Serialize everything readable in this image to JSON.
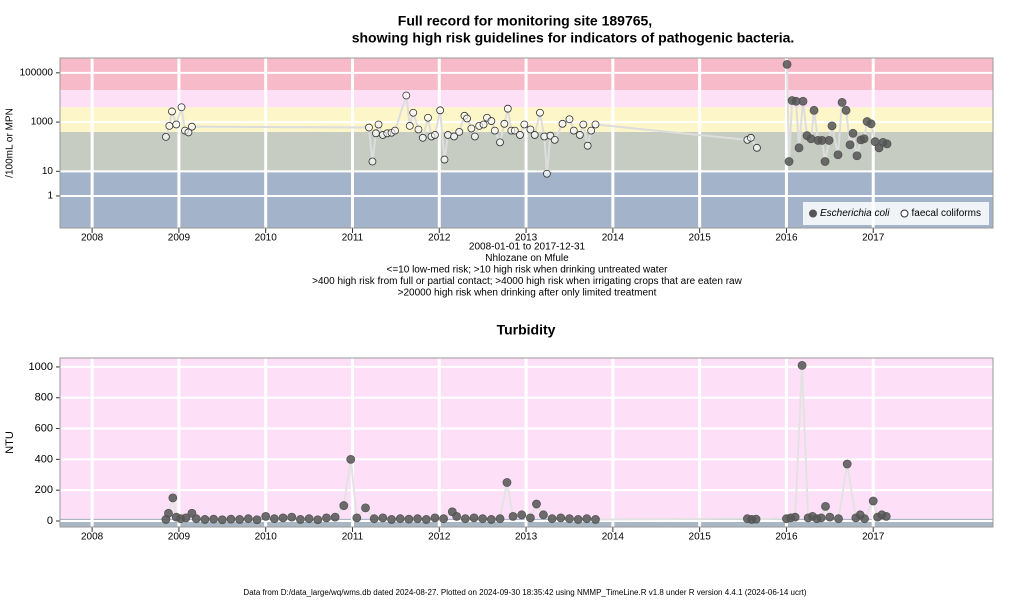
{
  "chart_data": [
    {
      "type": "scatter",
      "title": [
        "Full record for monitoring site 189765,",
        "showing high risk guidelines for indicators of pathogenic bacteria."
      ],
      "ylabel": "/100mL or MPN",
      "xlabel_lines": [
        "2008-01-01 to 2017-12-31",
        "Nhlozane on Mfule",
        "<=10 low-med risk; >10 high risk when drinking untreated water",
        ">400 high risk from full or partial contact; >4000 high risk when irrigating crops that are eaten raw",
        ">20000 high risk when drinking after only limited treatment"
      ],
      "log_y": true,
      "grid": true,
      "legend": "bottom-right",
      "xlim": [
        2007.63,
        2018.38
      ],
      "xticks": [
        2008,
        2009,
        2010,
        2011,
        2012,
        2013,
        2014,
        2015,
        2016,
        2017
      ],
      "ylim": [
        0.05,
        400000
      ],
      "yticks": [
        1,
        10,
        1000,
        100000
      ],
      "thresholds": [
        10,
        400,
        4000,
        20000
      ],
      "band_colors": [
        "#a3b4ca",
        "#c6ccc1",
        "#fdf6c8",
        "#fde0f6",
        "#f7bac8"
      ],
      "line_color": "#dddddd",
      "series": [
        {
          "name": "Escherichia coli",
          "italic": true,
          "color": "#555555",
          "filled": true,
          "x": [
            2016.007,
            2016.03,
            2016.065,
            2016.111,
            2016.145,
            2016.191,
            2016.237,
            2016.283,
            2016.318,
            2016.364,
            2016.41,
            2016.445,
            2016.491,
            2016.525,
            2016.594,
            2016.641,
            2016.687,
            2016.733,
            2016.767,
            2016.813,
            2016.859,
            2016.894,
            2016.929,
            2016.975,
            2017.021,
            2017.067,
            2017.113,
            2017.159
          ],
          "values": [
            220000,
            25,
            7500,
            7000,
            90,
            7000,
            280,
            210,
            3000,
            180,
            180,
            25,
            180,
            700,
            47,
            6300,
            3000,
            120,
            350,
            43,
            190,
            210,
            1050,
            850,
            160,
            90,
            150,
            130
          ]
        },
        {
          "name": "faecal coliforms",
          "italic": false,
          "color": "#333333",
          "filled": false,
          "x": [
            2008.85,
            2008.89,
            2008.92,
            2008.97,
            2009.03,
            2009.07,
            2009.11,
            2009.15,
            2011.19,
            2011.23,
            2011.27,
            2011.3,
            2011.35,
            2011.4,
            2011.45,
            2011.49,
            2011.62,
            2011.66,
            2011.7,
            2011.76,
            2011.81,
            2011.87,
            2011.91,
            2011.95,
            2012.01,
            2012.06,
            2012.1,
            2012.17,
            2012.23,
            2012.29,
            2012.32,
            2012.37,
            2012.41,
            2012.46,
            2012.51,
            2012.55,
            2012.6,
            2012.64,
            2012.7,
            2012.75,
            2012.79,
            2012.83,
            2012.87,
            2012.93,
            2012.98,
            2013.05,
            2013.1,
            2013.16,
            2013.21,
            2013.24,
            2013.28,
            2013.33,
            2013.42,
            2013.5,
            2013.55,
            2013.62,
            2013.66,
            2013.71,
            2013.75,
            2013.8,
            2015.55,
            2015.59,
            2015.66
          ],
          "values": [
            250,
            700,
            2700,
            800,
            4000,
            450,
            380,
            650,
            600,
            25,
            350,
            800,
            300,
            350,
            370,
            450,
            12000,
            700,
            2400,
            500,
            230,
            1500,
            260,
            300,
            3000,
            30,
            300,
            260,
            400,
            1800,
            1400,
            550,
            260,
            700,
            800,
            1500,
            1100,
            450,
            150,
            850,
            3500,
            450,
            450,
            300,
            800,
            500,
            300,
            2400,
            260,
            8,
            280,
            190,
            850,
            1300,
            450,
            300,
            800,
            110,
            450,
            800,
            190,
            230,
            90
          ]
        }
      ]
    },
    {
      "type": "scatter",
      "title": "Turbidity",
      "ylabel": "NTU",
      "log_y": false,
      "grid": true,
      "xlim": [
        2007.63,
        2018.38
      ],
      "xticks": [
        2008,
        2009,
        2010,
        2011,
        2012,
        2013,
        2014,
        2015,
        2016,
        2017
      ],
      "ylim": [
        -39,
        1058
      ],
      "yticks": [
        0,
        200,
        400,
        600,
        800,
        1000
      ],
      "thresholds": [
        15
      ],
      "band_colors": [
        "#a9b6c4",
        "#fde0f8"
      ],
      "line_color": "#e2e2e2",
      "series": [
        {
          "color": "#555555",
          "filled": true,
          "x": [
            2008.85,
            2008.88,
            2008.93,
            2008.97,
            2009.02,
            2009.08,
            2009.15,
            2009.2,
            2009.3,
            2009.4,
            2009.5,
            2009.6,
            2009.7,
            2009.8,
            2009.9,
            2010.0,
            2010.1,
            2010.2,
            2010.3,
            2010.4,
            2010.5,
            2010.6,
            2010.7,
            2010.8,
            2010.9,
            2010.98,
            2011.05,
            2011.15,
            2011.25,
            2011.35,
            2011.45,
            2011.55,
            2011.65,
            2011.75,
            2011.85,
            2011.95,
            2012.05,
            2012.15,
            2012.2,
            2012.3,
            2012.4,
            2012.5,
            2012.6,
            2012.7,
            2012.78,
            2012.85,
            2012.95,
            2013.05,
            2013.12,
            2013.2,
            2013.3,
            2013.4,
            2013.5,
            2013.6,
            2013.7,
            2013.8,
            2015.55,
            2015.6,
            2015.65,
            2016.0,
            2016.05,
            2016.1,
            2016.18,
            2016.25,
            2016.3,
            2016.35,
            2016.4,
            2016.45,
            2016.5,
            2016.6,
            2016.7,
            2016.8,
            2016.85,
            2016.9,
            2017.0,
            2017.05,
            2017.1,
            2017.15
          ],
          "values": [
            10,
            50,
            150,
            25,
            15,
            20,
            50,
            15,
            10,
            12,
            8,
            12,
            10,
            15,
            8,
            30,
            15,
            20,
            25,
            10,
            15,
            8,
            20,
            25,
            100,
            400,
            20,
            85,
            15,
            20,
            10,
            15,
            12,
            15,
            10,
            20,
            15,
            60,
            30,
            15,
            20,
            15,
            10,
            15,
            250,
            30,
            40,
            20,
            110,
            40,
            15,
            20,
            15,
            10,
            15,
            10,
            15,
            10,
            12,
            15,
            20,
            25,
            1010,
            20,
            30,
            15,
            20,
            95,
            25,
            15,
            370,
            20,
            40,
            15,
            130,
            25,
            40,
            30
          ]
        }
      ]
    }
  ],
  "footer": "Data from D:/data_large/wq/wms.db dated 2024-08-27. Plotted on 2024-09-30 18:35:42 using NMMP_TimeLine.R v1.8 under R version 4.4.1 (2024-06-14 ucrt)"
}
